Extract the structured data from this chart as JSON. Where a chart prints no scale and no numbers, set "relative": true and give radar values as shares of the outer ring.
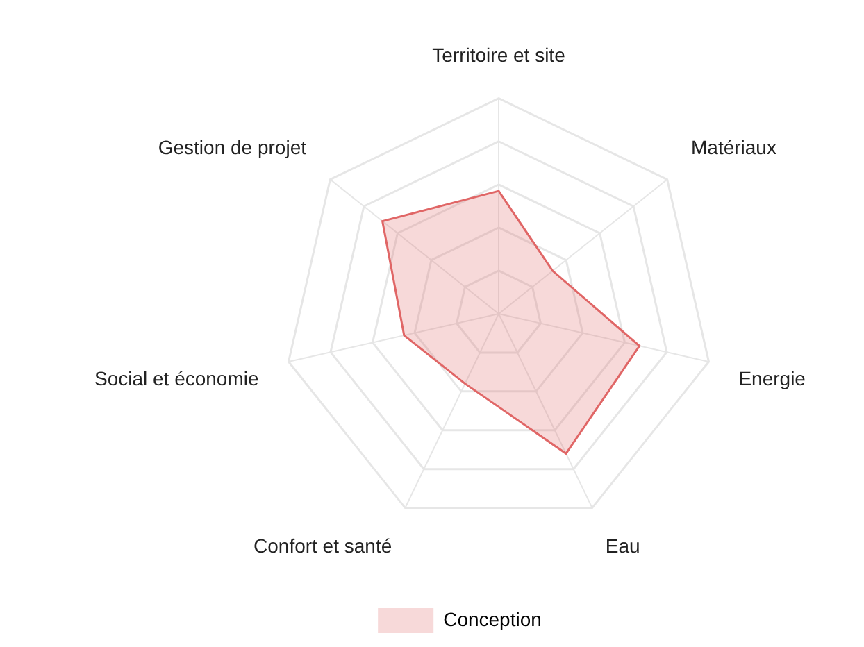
{
  "chart_data": {
    "type": "radar",
    "relative": true,
    "categories": [
      "Territoire et site",
      "Matériaux",
      "Energie",
      "Eau",
      "Confort et santé",
      "Social et économie",
      "Gestion de projet"
    ],
    "series": [
      {
        "name": "Conception",
        "color": "#e06666",
        "values": [
          0.57,
          0.32,
          0.67,
          0.72,
          0.36,
          0.45,
          0.69
        ]
      }
    ],
    "grid": true,
    "legend": "bottom",
    "marker": "none"
  }
}
